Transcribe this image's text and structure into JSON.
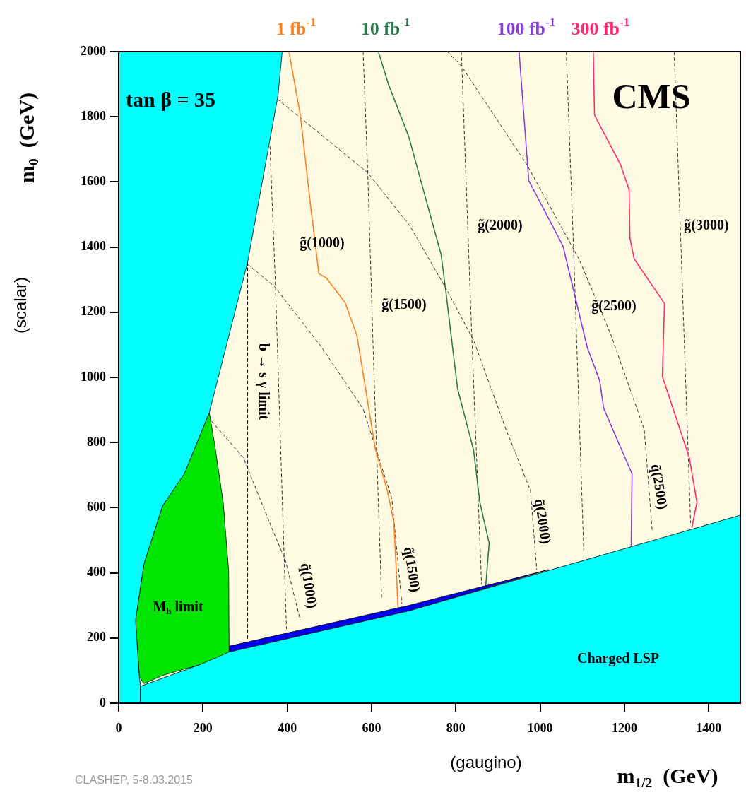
{
  "chart_data": {
    "type": "line",
    "xlabel": "m$_{1/2}$  (GeV)",
    "ylabel": "m$_{0}$  (GeV)",
    "xlim": [
      0,
      1475
    ],
    "ylim": [
      0,
      2000
    ],
    "xticks": [
      0,
      200,
      400,
      600,
      800,
      1000,
      1200,
      1400
    ],
    "yticks": [
      0,
      200,
      400,
      600,
      800,
      1000,
      1200,
      1400,
      1600,
      1800,
      2000
    ],
    "legend": false,
    "marker": "none",
    "annotations": [
      "tan β = 35",
      "CMS",
      "(scalar)",
      "(gaugino)",
      "CLASHEP, 5-8.03.2015",
      "M$_{h}$ limit",
      "Charged LSP",
      "b → s γ limit",
      "g̃(1000)",
      "g̃(1500)",
      "g̃(2000)",
      "g̃(2500)",
      "g̃(3000)",
      "q̃(1000)",
      "q̃(1500)",
      "q̃(2000)",
      "q̃(2500)"
    ],
    "series": [
      {
        "type": "area",
        "color": "#00ffff",
        "x": [
          0,
          388,
          378,
          306,
          215,
          156,
          104,
          60,
          40,
          49,
          52,
          52,
          0
        ],
        "values": [
          2000,
          2000,
          1865,
          1354,
          892,
          705,
          605,
          428,
          255,
          81,
          52,
          0,
          0
        ]
      },
      {
        "type": "area",
        "color": "#00ffff",
        "x": [
          0,
          0,
          52,
          196,
          262,
          688,
          1475,
          1475
        ],
        "values": [
          0,
          52,
          52,
          120,
          157,
          283,
          577,
          0
        ]
      },
      {
        "type": "area",
        "color": "#00e600",
        "x": [
          49,
          40,
          60,
          104,
          156,
          215,
          228,
          248,
          261,
          262,
          215,
          156,
          104,
          60
        ],
        "values": [
          81,
          255,
          428,
          605,
          705,
          892,
          792,
          616,
          405,
          157,
          125,
          105,
          85,
          60
        ]
      },
      {
        "type": "area",
        "color": "#0000ee",
        "x": [
          262,
          262,
          688,
          1020,
          688
        ],
        "values": [
          157,
          175,
          300,
          410,
          283
        ]
      },
      {
        "type": "line",
        "name": "1 fb$^{-1}$",
        "color": "#ff8020",
        "line_style": "solid",
        "x": [
          404,
          431,
          455,
          475,
          493,
          537,
          565,
          609,
          637,
          653,
          663
        ],
        "values": [
          2000,
          1805,
          1530,
          1318,
          1305,
          1230,
          1130,
          780,
          655,
          555,
          290
        ]
      },
      {
        "type": "line",
        "name": "10 fb$^{-1}$",
        "color": "#2e7d4f",
        "line_style": "solid",
        "x": [
          616,
          640,
          688,
          765,
          775,
          804,
          842,
          857,
          879,
          871
        ],
        "values": [
          2000,
          1900,
          1740,
          1377,
          1277,
          966,
          777,
          617,
          491,
          361
        ]
      },
      {
        "type": "line",
        "name": "100 fb$^{-1}$",
        "color": "#8a3ee0",
        "line_style": "solid",
        "x": [
          950,
          973,
          1054,
          1112,
          1141,
          1151,
          1218,
          1216
        ],
        "values": [
          2000,
          1604,
          1404,
          1091,
          991,
          904,
          704,
          484
        ]
      },
      {
        "type": "line",
        "name": "300 fb$^{-1}$",
        "color": "#ff2a70",
        "line_style": "solid",
        "x": [
          1126,
          1129,
          1190,
          1211,
          1213,
          1223,
          1295,
          1290,
          1354,
          1372,
          1360
        ],
        "values": [
          2000,
          1805,
          1655,
          1577,
          1428,
          1364,
          1227,
          1003,
          753,
          617,
          539
        ]
      },
      {
        "type": "line",
        "color": "#000000",
        "line_style": "dashed",
        "x": [
          306,
          306
        ],
        "values": [
          1354,
          192
        ]
      },
      {
        "type": "line",
        "color": "#333333",
        "line_style": "dashed",
        "x": [
          359,
          372,
          398
        ],
        "values": [
          1710,
          1280,
          228
        ]
      },
      {
        "type": "line",
        "color": "#333333",
        "line_style": "dashed",
        "x": [
          580,
          591,
          604,
          624
        ],
        "values": [
          2000,
          1628,
          1079,
          318
        ]
      },
      {
        "type": "line",
        "color": "#333333",
        "line_style": "dashed",
        "x": [
          813,
          837,
          861
        ],
        "values": [
          2000,
          1153,
          365
        ]
      },
      {
        "type": "line",
        "color": "#333333",
        "line_style": "dashed",
        "x": [
          1062,
          1079,
          1104
        ],
        "values": [
          2000,
          1404,
          446
        ]
      },
      {
        "type": "line",
        "color": "#333333",
        "line_style": "dashed",
        "x": [
          1318,
          1357
        ],
        "values": [
          2000,
          553
        ]
      },
      {
        "type": "line",
        "color": "#333333",
        "line_style": "dashed",
        "x": [
          220,
          296,
          366,
          395,
          431
        ],
        "values": [
          866,
          753,
          529,
          441,
          255
        ]
      },
      {
        "type": "line",
        "color": "#333333",
        "line_style": "dashed",
        "x": [
          306,
          369,
          483,
          580,
          648,
          672
        ],
        "values": [
          1347,
          1280,
          1090,
          903,
          629,
          305
        ]
      },
      {
        "type": "line",
        "color": "#333333",
        "line_style": "dashed",
        "x": [
          377,
          591,
          691,
          775,
          842,
          919,
          977,
          992
        ],
        "values": [
          1854,
          1628,
          1465,
          1277,
          1114,
          840,
          653,
          409
        ]
      },
      {
        "type": "line",
        "color": "#333333",
        "line_style": "dashed",
        "x": [
          780,
          814,
          968,
          1092,
          1169,
          1247,
          1266
        ],
        "values": [
          2000,
          1954,
          1654,
          1364,
          1127,
          840,
          527
        ]
      }
    ]
  }
}
